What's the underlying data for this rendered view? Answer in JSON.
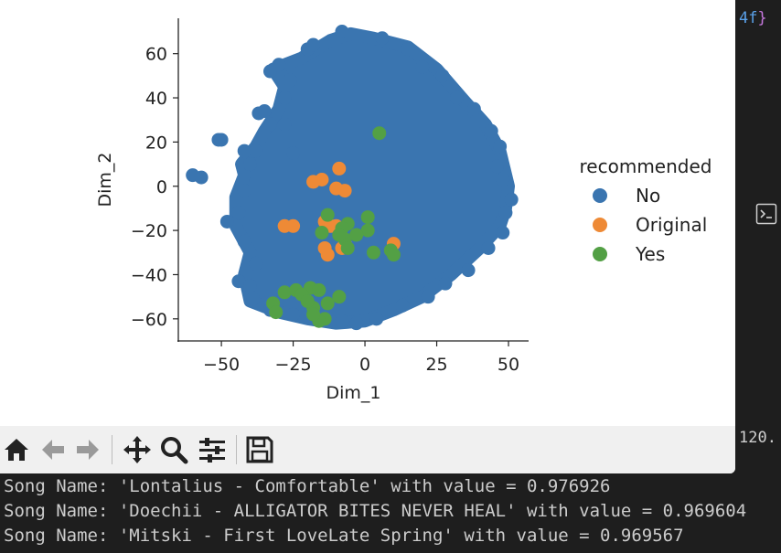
{
  "chart_data": {
    "type": "scatter",
    "title": "",
    "xlabel": "Dim_1",
    "ylabel": "Dim_2",
    "xlim": [
      -65,
      57
    ],
    "ylim": [
      -70,
      76
    ],
    "xticks": [
      -50,
      -25,
      0,
      25,
      50
    ],
    "yticks": [
      60,
      40,
      20,
      0,
      -20,
      -40,
      -60
    ],
    "xtick_labels": [
      "−50",
      "−25",
      "0",
      "25",
      "50"
    ],
    "ytick_labels": [
      "60",
      "40",
      "20",
      "0",
      "−20",
      "−40",
      "−60"
    ],
    "grid": false,
    "legend": {
      "title": "recommended",
      "position": "right",
      "entries": [
        "No",
        "Original",
        "Yes"
      ]
    },
    "colors": {
      "No": "#3a75b0",
      "Original": "#ee8a36",
      "Yes": "#53a045"
    },
    "series": [
      {
        "name": "No",
        "cloud_outline": [
          [
            -12,
            66
          ],
          [
            -5,
            69
          ],
          [
            3,
            67
          ],
          [
            15,
            63
          ],
          [
            25,
            53
          ],
          [
            35,
            38
          ],
          [
            42,
            28
          ],
          [
            47,
            16
          ],
          [
            50,
            0
          ],
          [
            49,
            -10
          ],
          [
            47,
            -18
          ],
          [
            40,
            -28
          ],
          [
            30,
            -40
          ],
          [
            20,
            -50
          ],
          [
            10,
            -56
          ],
          [
            0,
            -61
          ],
          [
            -10,
            -62
          ],
          [
            -20,
            -60
          ],
          [
            -30,
            -57
          ],
          [
            -40,
            -52
          ],
          [
            -42,
            -40
          ],
          [
            -40,
            -30
          ],
          [
            -45,
            -18
          ],
          [
            -45,
            -5
          ],
          [
            -42,
            5
          ],
          [
            -43,
            10
          ],
          [
            -38,
            18
          ],
          [
            -35,
            25
          ],
          [
            -30,
            35
          ],
          [
            -28,
            45
          ],
          [
            -32,
            53
          ],
          [
            -22,
            58
          ]
        ],
        "points": [
          [
            -60,
            5
          ],
          [
            -57,
            4
          ],
          [
            -51,
            21
          ],
          [
            -50,
            21
          ],
          [
            -48,
            -16
          ],
          [
            -44,
            -43
          ],
          [
            -37,
            33
          ],
          [
            -35,
            34
          ],
          [
            -30,
            55
          ],
          [
            -33,
            52
          ],
          [
            -26,
            48
          ],
          [
            -20,
            62
          ],
          [
            -18,
            64
          ],
          [
            -8,
            70
          ],
          [
            6,
            67
          ],
          [
            15,
            62
          ],
          [
            20,
            54
          ],
          [
            27,
            50
          ],
          [
            32,
            40
          ],
          [
            38,
            35
          ],
          [
            44,
            25
          ],
          [
            47,
            18
          ],
          [
            46,
            9
          ],
          [
            48,
            3
          ],
          [
            51,
            -6
          ],
          [
            49,
            -12
          ],
          [
            48,
            -21
          ],
          [
            43,
            -28
          ],
          [
            36,
            -38
          ],
          [
            28,
            -44
          ],
          [
            22,
            -50
          ],
          [
            13,
            -54
          ],
          [
            4,
            -60
          ],
          [
            -3,
            -62
          ],
          [
            -8,
            -61
          ],
          [
            -15,
            -60
          ],
          [
            -25,
            -58
          ],
          [
            -33,
            -56
          ],
          [
            -39,
            -51
          ],
          [
            -40,
            -45
          ],
          [
            -38,
            -35
          ],
          [
            -42,
            -25
          ],
          [
            -44,
            -12
          ],
          [
            -42,
            -2
          ],
          [
            -40,
            10
          ],
          [
            -38,
            16
          ],
          [
            -42,
            16
          ],
          [
            -33,
            28
          ],
          [
            -28,
            40
          ],
          [
            -28,
            28
          ],
          [
            -25,
            15
          ]
        ]
      },
      {
        "name": "Original",
        "points": [
          [
            -9,
            8
          ],
          [
            -18,
            2
          ],
          [
            -15,
            3
          ],
          [
            -10,
            -1
          ],
          [
            -7,
            -2
          ],
          [
            -14,
            -16
          ],
          [
            -12,
            -18
          ],
          [
            -14,
            -28
          ],
          [
            -13,
            -31
          ],
          [
            -8,
            -28
          ],
          [
            -7,
            -26
          ],
          [
            -28,
            -18
          ],
          [
            -25,
            -18
          ],
          [
            10,
            -26
          ],
          [
            -10,
            -18
          ]
        ]
      },
      {
        "name": "Yes",
        "points": [
          [
            5,
            24
          ],
          [
            -13,
            -13
          ],
          [
            -6,
            -17
          ],
          [
            -8,
            -19
          ],
          [
            -7,
            -24
          ],
          [
            -9,
            -22
          ],
          [
            -6,
            -28
          ],
          [
            -15,
            -21
          ],
          [
            1,
            -14
          ],
          [
            1,
            -20
          ],
          [
            -3,
            -22
          ],
          [
            3,
            -30
          ],
          [
            9,
            -29
          ],
          [
            10,
            -31
          ],
          [
            -28,
            -48
          ],
          [
            -24,
            -47
          ],
          [
            -19,
            -46
          ],
          [
            -16,
            -47
          ],
          [
            -22,
            -49
          ],
          [
            -32,
            -53
          ],
          [
            -31,
            -57
          ],
          [
            -18,
            -55
          ],
          [
            -14,
            -60
          ],
          [
            -16,
            -61
          ],
          [
            -13,
            -53
          ],
          [
            -20,
            -52
          ],
          [
            -9,
            -50
          ],
          [
            -18,
            -58
          ]
        ]
      }
    ]
  },
  "toolbar": {
    "items": [
      {
        "name": "home-icon",
        "label": "Home"
      },
      {
        "name": "back-arrow-icon",
        "label": "Back"
      },
      {
        "name": "forward-arrow-icon",
        "label": "Forward"
      },
      {
        "name": "pan-move-icon",
        "label": "Pan"
      },
      {
        "name": "zoom-magnifier-icon",
        "label": "Zoom"
      },
      {
        "name": "configure-subplots-icon",
        "label": "Configure subplots"
      },
      {
        "name": "save-floppy-icon",
        "label": "Save"
      }
    ]
  },
  "editor": {
    "code_fragment": "4f",
    "code_brace": "}",
    "number_fragment": "120."
  },
  "console": {
    "lines": [
      "Song Name: 'Lontalius - Comfortable' with value = 0.976926",
      "Song Name: 'Doechii - ALLIGATOR BITES NEVER HEAL' with value = 0.969604",
      "Song Name: 'Mitski - First LoveLate Spring' with value = 0.969567"
    ]
  }
}
